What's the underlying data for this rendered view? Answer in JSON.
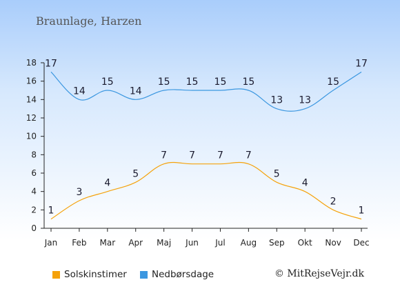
{
  "title": "Braunlage, Harzen",
  "chart_data": {
    "type": "line",
    "categories": [
      "Jan",
      "Feb",
      "Mar",
      "Apr",
      "Maj",
      "Jun",
      "Jul",
      "Aug",
      "Sep",
      "Okt",
      "Nov",
      "Dec"
    ],
    "ylim": [
      0,
      18
    ],
    "yticks": [
      0,
      2,
      4,
      6,
      8,
      10,
      12,
      14,
      16,
      18
    ],
    "grid": false,
    "legend_placement": "bottom-left",
    "series": [
      {
        "name": "Solskinstimer",
        "color": "#f5a20a",
        "values": [
          1,
          3,
          4,
          5,
          7,
          7,
          7,
          7,
          5,
          4,
          2,
          1
        ]
      },
      {
        "name": "Nedbørsdage",
        "color": "#3b97e0",
        "values": [
          17,
          14,
          15,
          14,
          15,
          15,
          15,
          15,
          13,
          13,
          15,
          17
        ]
      }
    ]
  },
  "legend": {
    "sun_label": "Solskinstimer",
    "sun_color": "#f5a20a",
    "rain_label": "Nedbørsdage",
    "rain_color": "#3b97e0"
  },
  "copyright": "© MitRejseVejr.dk"
}
